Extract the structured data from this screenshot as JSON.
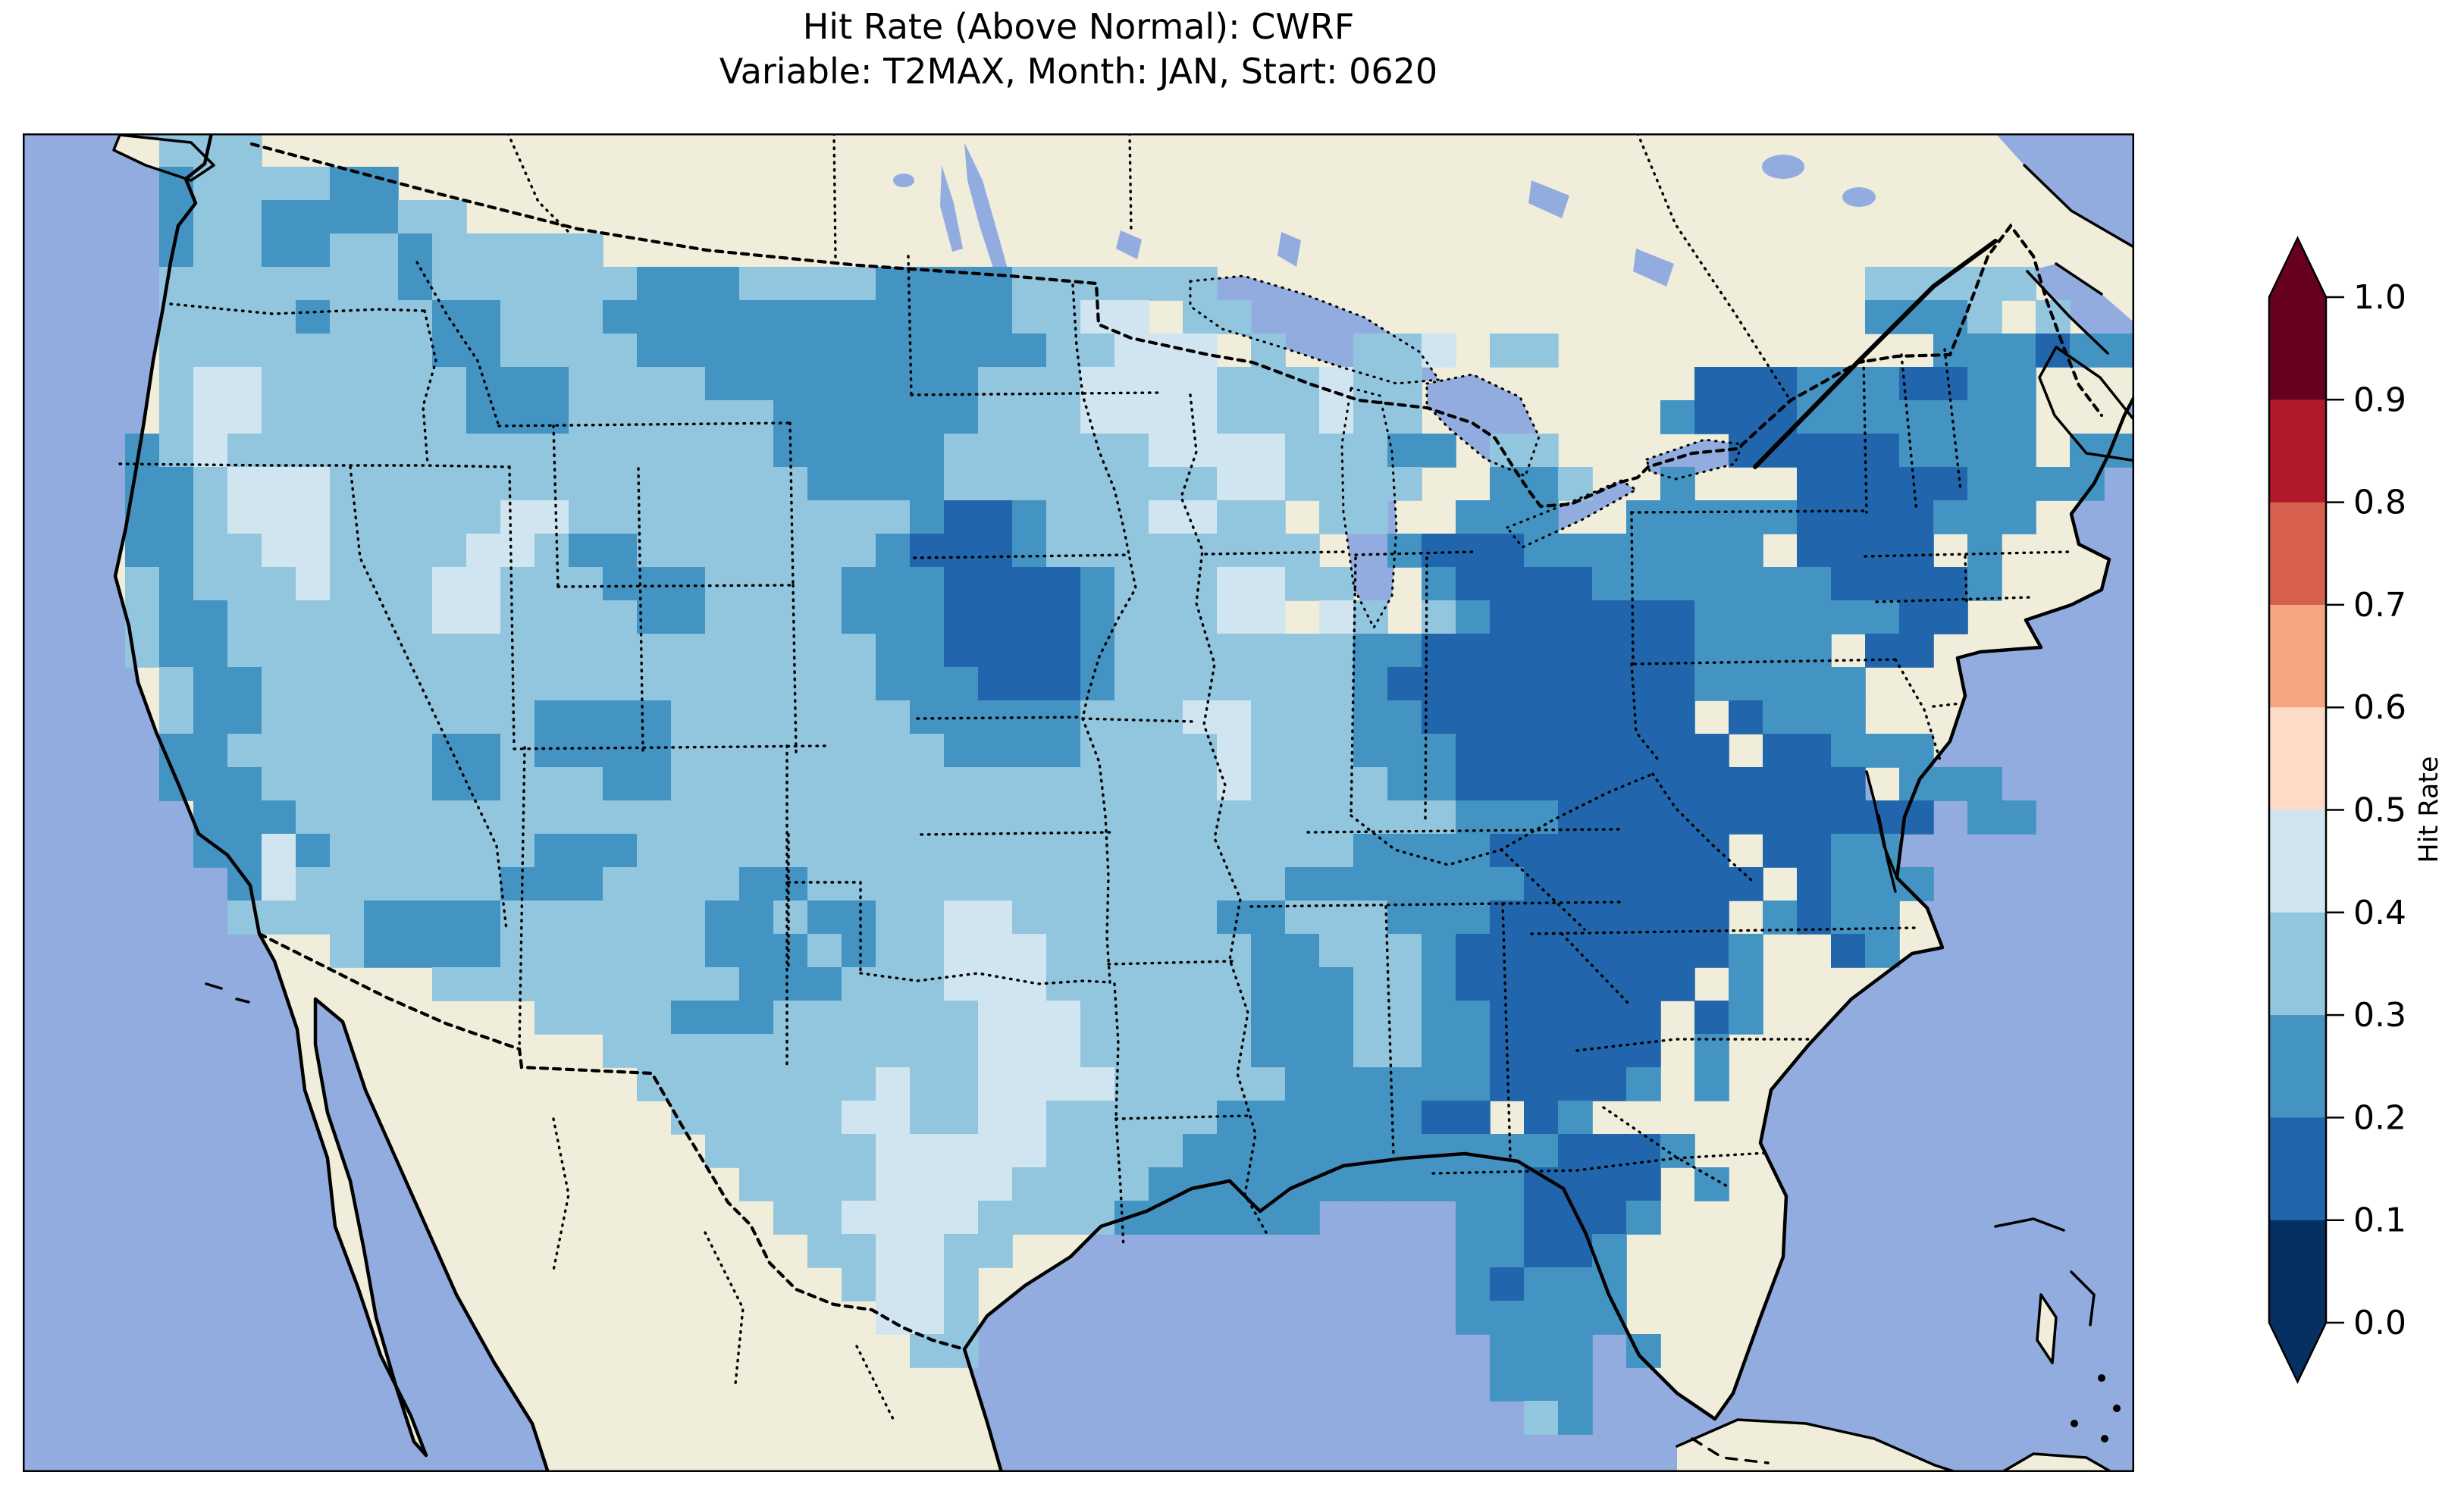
{
  "title": {
    "line1": "Hit Rate (Above Normal): CWRF",
    "line2": "Variable: T2MAX, Month: JAN, Start: 0620"
  },
  "colorbar": {
    "label": "Hit Rate",
    "ticks": [
      "0.0",
      "0.1",
      "0.2",
      "0.3",
      "0.4",
      "0.5",
      "0.6",
      "0.7",
      "0.8",
      "0.9",
      "1.0"
    ],
    "bins_top_to_bottom": [
      {
        "range": [
          0.9,
          1.0
        ],
        "color": "#67001F"
      },
      {
        "range": [
          0.8,
          0.9
        ],
        "color": "#B2182B"
      },
      {
        "range": [
          0.7,
          0.8
        ],
        "color": "#D6604D"
      },
      {
        "range": [
          0.6,
          0.7
        ],
        "color": "#F4A582"
      },
      {
        "range": [
          0.5,
          0.6
        ],
        "color": "#FDDBC7"
      },
      {
        "range": [
          0.4,
          0.5
        ],
        "color": "#D1E5F0"
      },
      {
        "range": [
          0.3,
          0.4
        ],
        "color": "#92C5DE"
      },
      {
        "range": [
          0.2,
          0.3
        ],
        "color": "#4393C3"
      },
      {
        "range": [
          0.1,
          0.2
        ],
        "color": "#2166AC"
      },
      {
        "range": [
          0.0,
          0.1
        ],
        "color": "#053061"
      }
    ],
    "extend_over_color": "#67001F",
    "extend_under_color": "#053061"
  },
  "map": {
    "ocean_color": "#92ACDF",
    "lake_color": "#92ACDF",
    "land_color": "#F0EEDA",
    "coastline_color": "#000000"
  },
  "chart_data": {
    "type": "heatmap",
    "title": "Hit Rate (Above Normal): CWRF",
    "subtitle": "Variable: T2MAX, Month: JAN, Start: 0620",
    "metric": "Hit Rate (Above Normal)",
    "model": "CWRF",
    "variable": "T2MAX",
    "month": "JAN",
    "start": "0620",
    "region": "Contiguous United States (map also shows Canada, Mexico, Cuba, Bahamas)",
    "colorbar_range": [
      0.0,
      1.0
    ],
    "colorbar_step": 0.1,
    "value_bins": {
      "2": [
        0.1,
        0.2
      ],
      "3": [
        0.2,
        0.3
      ],
      "4": [
        0.3,
        0.4
      ],
      "5": [
        0.4,
        0.5
      ]
    },
    "bin_colors": {
      "2": "#2166AC",
      "3": "#4393C3",
      "4": "#92C5DE",
      "5": "#D1E5F0"
    },
    "cell_size_px": [
      45,
      44
    ],
    "grid_cols": 62,
    "grid_rows": 40,
    "grid_legend": ". = no data; 2 = 0.1-0.2; 3 = 0.2-0.3; 4 = 0.3-0.4; 5 = 0.4-0.5",
    "grid": [
      "....444...........................................................",
      "....3444433.......................................................",
      "....344333344..................................................4..",
      "....3443344344444..............................................4444..",
      "....4444444344444433344443333444444...................44444..",
      "....44443444334443333333333334455 44..................3334 4..",
      "....4444444433444433333333333344555 4..445 44...........333233 3..",
      "....4554444443334444333333334445555444544........2223332233...",
      "....4554444443334444443333334445555444544.......32223333333...",
      "...345444444444444444433333444444555544433 44.....222223333 33..",
      "...33455544444444444444333344444444554444..334..3...222223333...",
      "...3345554444455444444444432234445544 44..333..333332222333....",
      "...33445544445543344444443222344444444..32223333333 2222 3....",
      "...434445444554443334444333222234445544..32222333333322223....",
      "...4334444445544443344443332222344455 54.4322222233333322.....",
      "...43344444444444444444443322223444444433222222223333 22......",
      "....43344444444444444444433322234444444322222222233333 .......",
      "....433444444443333444444433333444554443322222222 2333........",
      "....3344444433433334444444433334444544433322222222 22333.......",
      "....33344444334443344444444444444445444433222222222222 333....",
      ".....333444444444444444444444444444444444433322222222222 33...",
      ".....335344444433344444444444444444444433332222222 2233.......",
      "......354444443334444334444444444444433333332222222 2333......",
      "......44443333444444334334455444444334443332222222 3233.......",
      ".........433334444443334344555444444334443222222223..23......",
      "............4444444443334445554444443334432222222 3..........",
      "...............444433344444455544444333443322222 23..........",
      ".................4444444444455544444333443322222 3...........",
      "..................444444454455554444433333322223 3...........",
      "...................444445544554444433333322 23...............",
      "....................44444555554444333333333332223............",
      ".....................444455554444333333333332222 3...........",
      "......................4455554444333333....332223.............",
      ".......................445544.............33223..............",
      "........................4554..............32333..............",
      ".........................554..............33333..............",
      "..........................44...............333 3.............",
      "...........................................333...............",
      "............................................43...............",
      ".............................................................."
    ],
    "grid_rows_strings_note": "Each row is rendered left-to-right, top-to-bottom over the map axes at 45x44 px per cell; dots are transparent (no data).",
    "regional_summary": [
      {
        "region": "Pacific Northwest (WA)",
        "hit_rate": "0.2-0.4"
      },
      {
        "region": "Oregon / NW Nevada interior",
        "hit_rate": "0.4-0.5 patches on 0.3-0.4"
      },
      {
        "region": "California coast & SoCal",
        "hit_rate": "0.2-0.3"
      },
      {
        "region": "Great Basin / Rockies",
        "hit_rate": "0.3-0.4"
      },
      {
        "region": "Montana & western North Dakota",
        "hit_rate": "0.2-0.3"
      },
      {
        "region": "Central SD / Nebraska / W Iowa / NW Missouri",
        "hit_rate": "0.1-0.2"
      },
      {
        "region": "Minnesota / Wisconsin / N Illinois",
        "hit_rate": "0.3-0.5"
      },
      {
        "region": "Central & South Texas",
        "hit_rate": "0.4-0.5"
      },
      {
        "region": "Lower Mississippi valley / Gulf coast",
        "hit_rate": "0.2-0.3"
      },
      {
        "region": "Ohio valley, Appalachians, VA, Carolinas, Georgia",
        "hit_rate": "0.1-0.2"
      },
      {
        "region": "Florida",
        "hit_rate": "0.1-0.3"
      },
      {
        "region": "Northeast (NY, PA, New England coast)",
        "hit_rate": "0.2-0.3 with 0.1-0.2 pockets"
      },
      {
        "region": "Northern Maine",
        "hit_rate": "0.3-0.4"
      }
    ]
  }
}
